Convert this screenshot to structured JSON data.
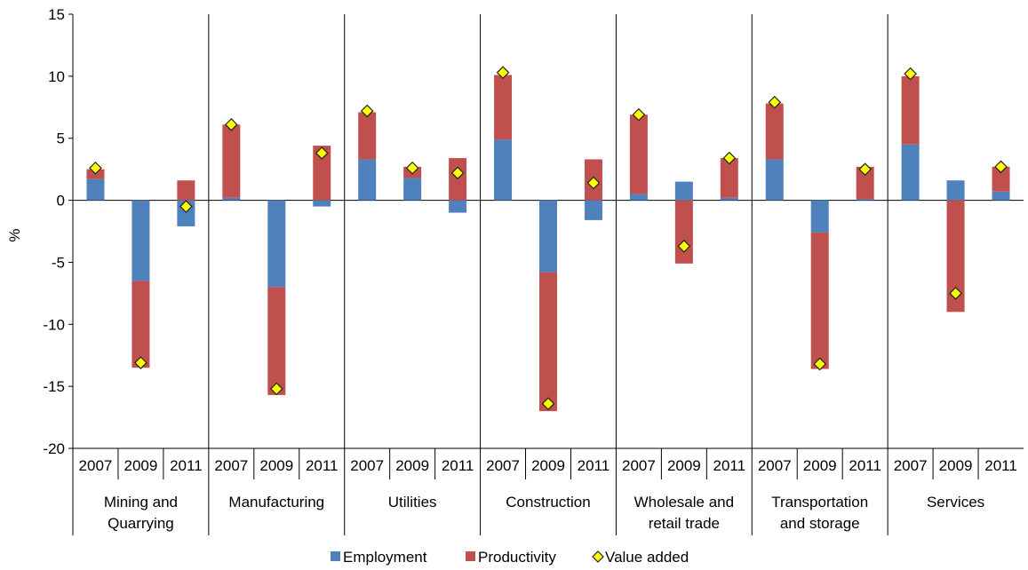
{
  "chart_data": {
    "type": "bar",
    "stacked": true,
    "ylabel": "%",
    "ylim": [
      -20,
      15
    ],
    "yticks": [
      "15",
      "10",
      "5",
      "0",
      "-5",
      "-10",
      "-15",
      "-20"
    ],
    "grid": false,
    "legend_position": "bottom",
    "colors": {
      "employment": "#4f81bd",
      "productivity": "#c0504d",
      "value_added": "#ffff00",
      "value_added_border": "#6b6b00"
    },
    "groups": [
      {
        "label": "Mining and Quarrying",
        "label_lines": [
          "Mining and",
          "Quarrying"
        ],
        "years": [
          "2007",
          "2009",
          "2011"
        ]
      },
      {
        "label": "Manufacturing",
        "label_lines": [
          "Manufacturing"
        ],
        "years": [
          "2007",
          "2009",
          "2011"
        ]
      },
      {
        "label": "Utilities",
        "label_lines": [
          "Utilities"
        ],
        "years": [
          "2007",
          "2009",
          "2011"
        ]
      },
      {
        "label": "Construction",
        "label_lines": [
          "Construction"
        ],
        "years": [
          "2007",
          "2009",
          "2011"
        ]
      },
      {
        "label": "Wholesale and retail trade",
        "label_lines": [
          "Wholesale and",
          "retail trade"
        ],
        "years": [
          "2007",
          "2009",
          "2011"
        ]
      },
      {
        "label": "Transportation and storage",
        "label_lines": [
          "Transportation",
          "and storage"
        ],
        "years": [
          "2007",
          "2009",
          "2011"
        ]
      },
      {
        "label": "Services",
        "label_lines": [
          "Services"
        ],
        "years": [
          "2007",
          "2009",
          "2011"
        ]
      }
    ],
    "series": [
      {
        "name": "Employment",
        "kind": "bar",
        "values": [
          [
            1.7,
            -6.5,
            -2.1
          ],
          [
            0.2,
            -7.0,
            -0.5
          ],
          [
            3.3,
            1.8,
            -1.0
          ],
          [
            4.9,
            -5.8,
            -1.6
          ],
          [
            0.5,
            1.5,
            0.2
          ],
          [
            3.3,
            -2.6,
            0.1
          ],
          [
            4.5,
            1.6,
            0.7
          ]
        ]
      },
      {
        "name": "Productivity",
        "kind": "bar",
        "values": [
          [
            0.8,
            -7.0,
            1.6
          ],
          [
            5.9,
            -8.7,
            4.4
          ],
          [
            3.8,
            0.9,
            3.4
          ],
          [
            5.2,
            -11.2,
            3.3
          ],
          [
            6.4,
            -5.1,
            3.2
          ],
          [
            4.5,
            -11.0,
            2.6
          ],
          [
            5.5,
            -9.0,
            2.0
          ]
        ]
      },
      {
        "name": "Value added",
        "kind": "marker",
        "values": [
          [
            2.6,
            -13.1,
            -0.5
          ],
          [
            6.1,
            -15.2,
            3.8
          ],
          [
            7.2,
            2.6,
            2.2
          ],
          [
            10.3,
            -16.4,
            1.4
          ],
          [
            6.9,
            -3.7,
            3.4
          ],
          [
            7.9,
            -13.2,
            2.5
          ],
          [
            10.2,
            -7.5,
            2.7
          ]
        ]
      }
    ]
  }
}
